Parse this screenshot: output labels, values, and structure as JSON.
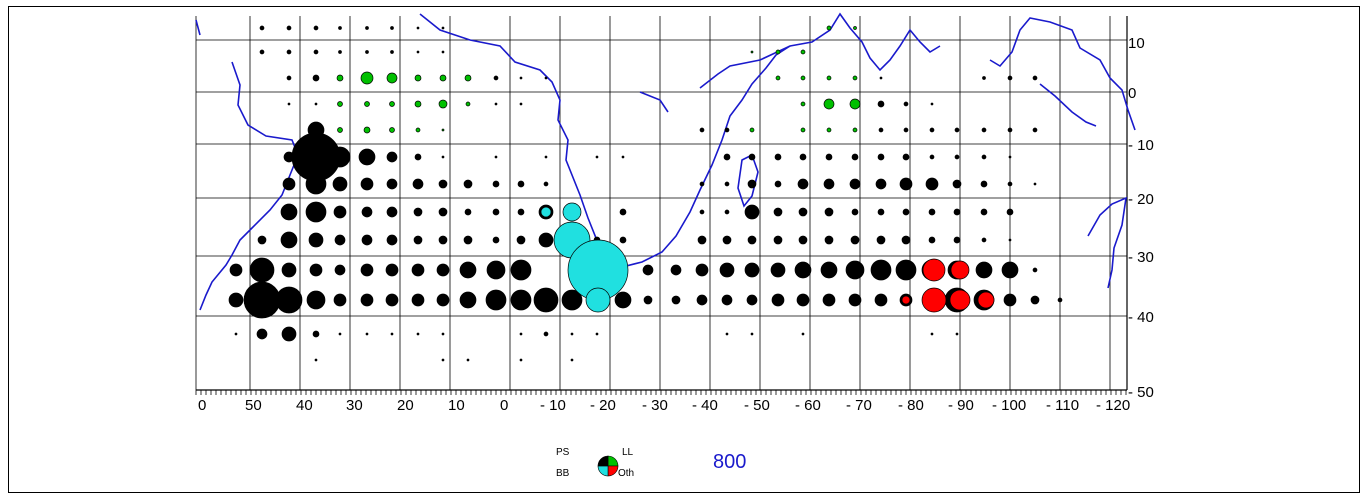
{
  "map": {
    "x_axis_labels": [
      "0",
      "50",
      "40",
      "30",
      "20",
      "10",
      "0",
      "- 10",
      "- 20",
      "- 30",
      "- 40",
      "- 50",
      "- 60",
      "- 70",
      "- 80",
      "- 90",
      "- 100",
      "- 110",
      "- 120"
    ],
    "y_axis_labels": [
      "10",
      "0",
      "- 10",
      "- 20",
      "- 30",
      "- 40",
      "- 50"
    ],
    "colors": {
      "coast": "#1a1acc",
      "grid": "#000000",
      "PS": "#000000",
      "BB": "#20e0e0",
      "LL": "#00c000",
      "Oth": "#ff0000"
    }
  },
  "legend": {
    "ps_label": "PS",
    "bb_label": "BB",
    "ll_label": "LL",
    "oth_label": "Oth",
    "scale_value": "800"
  }
}
